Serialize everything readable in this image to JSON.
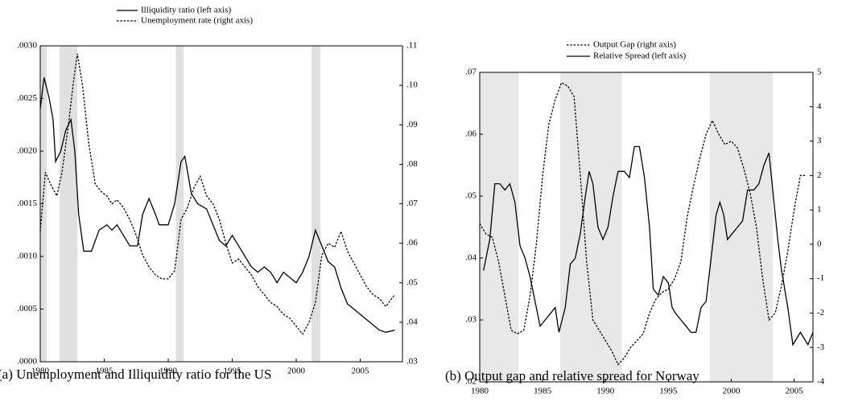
{
  "chart_data": [
    {
      "type": "line",
      "caption": "(a) Unemployment and Illiquidity ratio for the US",
      "xlim": [
        1980,
        2008.3
      ],
      "xticks": [
        1980,
        1985,
        1990,
        1995,
        2000,
        2005
      ],
      "ylim": [
        0,
        0.003
      ],
      "yticks": [
        {
          "value": 0,
          "label": ".0000"
        },
        {
          "value": 0.0005,
          "label": ".0005"
        },
        {
          "value": 0.001,
          "label": ".0010"
        },
        {
          "value": 0.0015,
          "label": ".0015"
        },
        {
          "value": 0.002,
          "label": ".0020"
        },
        {
          "value": 0.0025,
          "label": ".0025"
        },
        {
          "value": 0.003,
          "label": ".0030"
        }
      ],
      "y2lim": [
        0.03,
        0.11
      ],
      "y2ticks": [
        {
          "value": 0.03,
          "label": ".03"
        },
        {
          "value": 0.04,
          "label": ".04"
        },
        {
          "value": 0.05,
          "label": ".05"
        },
        {
          "value": 0.06,
          "label": ".06"
        },
        {
          "value": 0.07,
          "label": ".07"
        },
        {
          "value": 0.08,
          "label": ".08"
        },
        {
          "value": 0.09,
          "label": ".09"
        },
        {
          "value": 0.1,
          "label": ".10"
        },
        {
          "value": 0.11,
          "label": ".11"
        }
      ],
      "shaded_periods": [
        [
          1980.0,
          1980.5
        ],
        [
          1981.5,
          1982.9
        ],
        [
          1990.6,
          1991.2
        ],
        [
          2001.2,
          2001.9
        ]
      ],
      "shade_color": "#e0e0e0",
      "series": [
        {
          "name": "Illiquidity ratio (left axis)",
          "color": "#000000",
          "style": "solid",
          "axis": "y",
          "x": [
            1980.0,
            1980.3,
            1980.7,
            1981.0,
            1981.2,
            1981.6,
            1982.0,
            1982.4,
            1982.7,
            1983.0,
            1983.4,
            1984.0,
            1984.6,
            1985.2,
            1985.6,
            1986.0,
            1986.5,
            1987.0,
            1987.6,
            1988.0,
            1988.5,
            1989.0,
            1989.3,
            1990.0,
            1990.5,
            1991.0,
            1991.3,
            1991.8,
            1992.3,
            1993.0,
            1993.5,
            1994.0,
            1994.5,
            1995.0,
            1995.5,
            1996.0,
            1996.5,
            1997.0,
            1997.5,
            1998.0,
            1998.5,
            1999.0,
            1999.5,
            2000.0,
            2000.5,
            2001.0,
            2001.5,
            2002.0,
            2002.5,
            2003.0,
            2003.5,
            2004.0,
            2004.5,
            2005.0,
            2005.5,
            2006.0,
            2006.5,
            2007.0,
            2007.7
          ],
          "values": [
            0.0024,
            0.0027,
            0.0025,
            0.0023,
            0.0019,
            0.002,
            0.0022,
            0.0023,
            0.002,
            0.0014,
            0.00105,
            0.00105,
            0.00125,
            0.0013,
            0.00125,
            0.0013,
            0.0012,
            0.0011,
            0.0011,
            0.0014,
            0.00155,
            0.0014,
            0.0013,
            0.0013,
            0.0015,
            0.0019,
            0.00195,
            0.0016,
            0.0015,
            0.00145,
            0.0013,
            0.00115,
            0.0011,
            0.0012,
            0.0011,
            0.001,
            0.0009,
            0.00085,
            0.0009,
            0.00085,
            0.00075,
            0.00085,
            0.0008,
            0.00075,
            0.00085,
            0.001,
            0.00125,
            0.0011,
            0.00095,
            0.0009,
            0.0007,
            0.00055,
            0.0005,
            0.00045,
            0.0004,
            0.00035,
            0.0003,
            0.00028,
            0.0003
          ]
        },
        {
          "name": "Unemployment rate (right axis)",
          "color": "#000000",
          "style": "dashed",
          "axis": "y2",
          "x": [
            1980.0,
            1980.4,
            1980.8,
            1981.3,
            1981.7,
            1982.2,
            1982.6,
            1982.9,
            1983.3,
            1983.8,
            1984.3,
            1984.8,
            1985.2,
            1985.6,
            1986.0,
            1986.5,
            1987.0,
            1987.5,
            1988.0,
            1988.5,
            1989.0,
            1989.5,
            1990.0,
            1990.5,
            1991.0,
            1991.5,
            1992.0,
            1992.5,
            1993.0,
            1993.5,
            1994.0,
            1994.5,
            1995.0,
            1995.5,
            1996.0,
            1996.5,
            1997.0,
            1997.5,
            1998.0,
            1998.5,
            1999.0,
            1999.5,
            2000.0,
            2000.5,
            2001.0,
            2001.5,
            2002.0,
            2002.5,
            2003.0,
            2003.5,
            2004.0,
            2004.5,
            2005.0,
            2005.5,
            2006.0,
            2006.5,
            2007.0,
            2007.7
          ],
          "values": [
            0.063,
            0.078,
            0.075,
            0.072,
            0.078,
            0.09,
            0.101,
            0.108,
            0.1,
            0.085,
            0.075,
            0.073,
            0.072,
            0.07,
            0.071,
            0.069,
            0.066,
            0.062,
            0.057,
            0.054,
            0.052,
            0.051,
            0.051,
            0.053,
            0.066,
            0.069,
            0.074,
            0.077,
            0.072,
            0.07,
            0.066,
            0.06,
            0.055,
            0.056,
            0.054,
            0.052,
            0.049,
            0.047,
            0.045,
            0.044,
            0.042,
            0.041,
            0.039,
            0.037,
            0.04,
            0.045,
            0.057,
            0.06,
            0.059,
            0.063,
            0.058,
            0.055,
            0.052,
            0.049,
            0.047,
            0.046,
            0.044,
            0.047
          ]
        }
      ]
    },
    {
      "type": "line",
      "caption": "(b) Output gap and relative spread for Norway",
      "xlim": [
        1980,
        2006.5
      ],
      "xticks": [
        1980,
        1985,
        1990,
        1995,
        2000,
        2005
      ],
      "ylim": [
        0.02,
        0.07
      ],
      "yticks": [
        {
          "value": 0.02,
          "label": ".02"
        },
        {
          "value": 0.03,
          "label": ".03"
        },
        {
          "value": 0.04,
          "label": ".04"
        },
        {
          "value": 0.05,
          "label": ".05"
        },
        {
          "value": 0.06,
          "label": ".06"
        },
        {
          "value": 0.07,
          "label": ".07"
        }
      ],
      "y2lim": [
        -4,
        5
      ],
      "y2ticks": [
        -4,
        -3,
        -2,
        -1,
        0,
        1,
        2,
        3,
        4,
        5
      ],
      "shaded_periods": [
        [
          1980.0,
          1983.1
        ],
        [
          1986.4,
          1991.3
        ],
        [
          1998.3,
          2003.3
        ]
      ],
      "shade_color": "#e8e8e8",
      "series": [
        {
          "name": "Output Gap (right axis)",
          "color": "#000000",
          "style": "dashed",
          "axis": "y2",
          "x": [
            1980.0,
            1980.5,
            1981.0,
            1981.5,
            1982.0,
            1982.5,
            1983.0,
            1983.5,
            1984.0,
            1984.5,
            1985.0,
            1985.5,
            1986.0,
            1986.5,
            1987.0,
            1987.5,
            1988.0,
            1988.5,
            1989.0,
            1989.5,
            1990.0,
            1990.5,
            1991.0,
            1991.5,
            1992.0,
            1992.5,
            1993.0,
            1993.5,
            1994.0,
            1994.5,
            1995.0,
            1995.5,
            1996.0,
            1996.5,
            1997.0,
            1997.5,
            1998.0,
            1998.5,
            1999.0,
            1999.5,
            2000.0,
            2000.5,
            2001.0,
            2001.5,
            2002.0,
            2002.5,
            2003.0,
            2003.5,
            2004.0,
            2004.5,
            2005.0,
            2005.5,
            2005.9
          ],
          "values": [
            0.6,
            0.3,
            0.2,
            -0.5,
            -1.5,
            -2.5,
            -2.6,
            -2.5,
            -1.5,
            0,
            2,
            3.5,
            4.2,
            4.7,
            4.6,
            4.3,
            2,
            -0.5,
            -2.2,
            -2.5,
            -2.8,
            -3.1,
            -3.5,
            -3.3,
            -3,
            -2.8,
            -2.6,
            -2,
            -1.6,
            -1.4,
            -1.3,
            -1,
            -0.5,
            0.8,
            1.7,
            2.5,
            3.2,
            3.6,
            3.2,
            2.9,
            3,
            2.8,
            2.2,
            1.5,
            0.5,
            -1,
            -2.2,
            -2,
            -1.2,
            -0.2,
            1,
            2,
            2
          ]
        },
        {
          "name": "Relative Spread (left axis)",
          "color": "#000000",
          "style": "solid",
          "axis": "y",
          "x": [
            1980.3,
            1980.8,
            1981.2,
            1981.6,
            1982.0,
            1982.4,
            1982.8,
            1983.2,
            1983.6,
            1984.0,
            1984.5,
            1984.8,
            1985.2,
            1985.6,
            1986.0,
            1986.3,
            1986.8,
            1987.2,
            1987.6,
            1988.0,
            1988.4,
            1988.7,
            1989.0,
            1989.4,
            1989.8,
            1990.2,
            1990.6,
            1991.0,
            1991.5,
            1991.9,
            1992.3,
            1992.7,
            1993.1,
            1993.5,
            1993.8,
            1994.2,
            1994.6,
            1995.0,
            1995.3,
            1995.6,
            1996.0,
            1996.4,
            1996.8,
            1997.2,
            1997.6,
            1998.0,
            1998.4,
            1998.8,
            1999.1,
            1999.4,
            1999.7,
            2000.1,
            2000.5,
            2000.9,
            2001.3,
            2001.8,
            2002.2,
            2002.6,
            2003.0,
            2003.3,
            2003.7,
            2004.0,
            2004.5,
            2004.9,
            2005.2,
            2005.5,
            2005.8,
            2006.1,
            2006.5
          ],
          "values": [
            0.038,
            0.043,
            0.052,
            0.052,
            0.051,
            0.052,
            0.049,
            0.042,
            0.04,
            0.037,
            0.032,
            0.029,
            0.03,
            0.031,
            0.032,
            0.028,
            0.032,
            0.039,
            0.04,
            0.044,
            0.05,
            0.054,
            0.052,
            0.045,
            0.043,
            0.045,
            0.05,
            0.054,
            0.054,
            0.053,
            0.058,
            0.058,
            0.053,
            0.045,
            0.035,
            0.034,
            0.037,
            0.036,
            0.032,
            0.031,
            0.03,
            0.029,
            0.028,
            0.028,
            0.032,
            0.033,
            0.04,
            0.047,
            0.049,
            0.047,
            0.043,
            0.044,
            0.045,
            0.046,
            0.051,
            0.051,
            0.052,
            0.055,
            0.057,
            0.051,
            0.043,
            0.038,
            0.032,
            0.026,
            0.027,
            0.028,
            0.027,
            0.026,
            0.028
          ]
        }
      ]
    }
  ]
}
